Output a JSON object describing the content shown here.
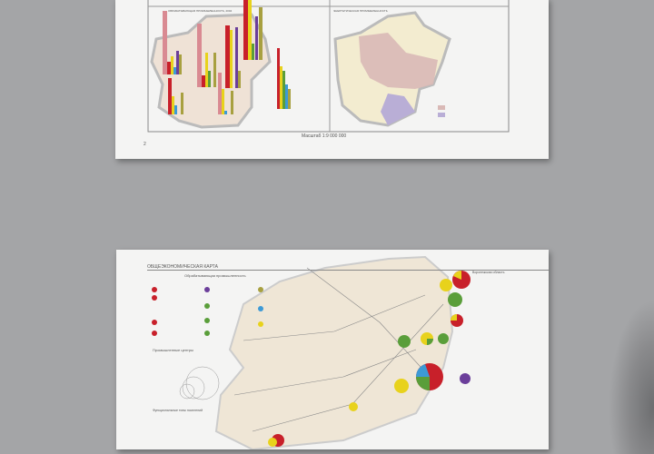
{
  "top_page": {
    "left_map_title": "ОБРАБАТЫВАЮЩАЯ ПРОМЫШЛЕННОСТЬ, 2004",
    "right_map_title": "ЭНЕРГЕТИЧЕСКАЯ ПРОМЫШЛЕННОСТЬ",
    "scale": "Масштаб 1:9 000 000",
    "page_number": "2"
  },
  "bottom_page": {
    "title": "ОБЩЕЭКОНОМИЧЕСКАЯ КАРТА",
    "legend_title": "Обрабатывающая промышленность",
    "legend_centers": "Промышленные центры",
    "legend_types": "Функциональные типы поселений",
    "neighbor_label": "Воронежская область"
  },
  "colors": {
    "background": "#a4a5a7",
    "paper": "#f4f4f3",
    "region_fill": "#efe6d6",
    "pink_zone": "#d9b9b6",
    "purple_zone": "#b9aed6",
    "red": "#c8202a",
    "yellow": "#e8d21c",
    "green": "#5a9e3a",
    "blue": "#3d9ad6",
    "violet": "#6b3e9a",
    "olive": "#a8a040"
  }
}
